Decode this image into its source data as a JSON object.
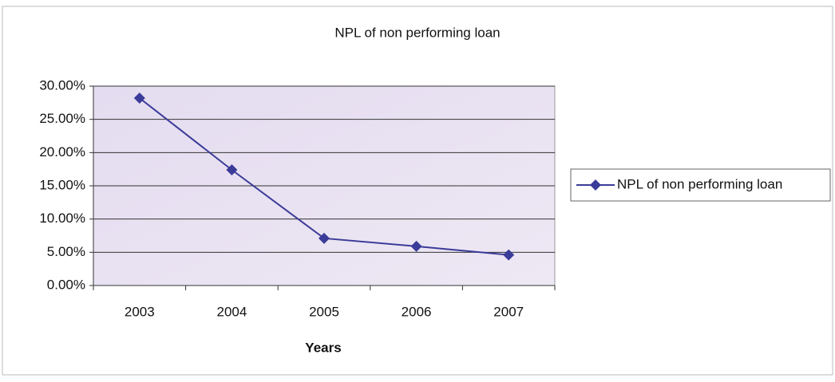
{
  "chart_data": {
    "type": "line",
    "title": "NPL of non performing loan",
    "x_label": "Years",
    "categories": [
      "2003",
      "2004",
      "2005",
      "2006",
      "2007"
    ],
    "series": [
      {
        "name": "NPL of non performing loan",
        "color": "#3b3b99",
        "values": [
          28.2,
          17.4,
          7.1,
          5.9,
          4.6
        ]
      }
    ],
    "ylim": [
      0,
      30
    ],
    "yticks": [
      {
        "value": 0,
        "label": "0.00%"
      },
      {
        "value": 5,
        "label": "5.00%"
      },
      {
        "value": 10,
        "label": "10.00%"
      },
      {
        "value": 15,
        "label": "15.00%"
      },
      {
        "value": 20,
        "label": "20.00%"
      },
      {
        "value": 25,
        "label": "25.00%"
      },
      {
        "value": 30,
        "label": "30.00%"
      }
    ],
    "grid": true,
    "legend": "right"
  }
}
